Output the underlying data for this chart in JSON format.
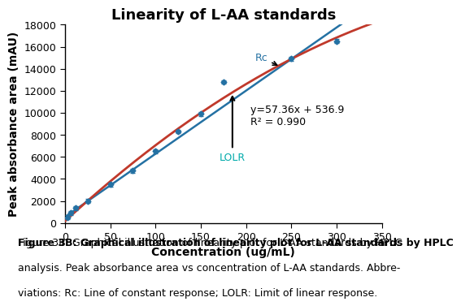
{
  "title": "Linearity of L-AA standards",
  "xlabel": "Concentration (ug/mL)",
  "ylabel": "Peak absorbance area (mAU)",
  "xlim": [
    0,
    350
  ],
  "ylim": [
    0,
    18000
  ],
  "xticks": [
    0,
    50,
    100,
    150,
    200,
    250,
    300,
    350
  ],
  "yticks": [
    0,
    2000,
    4000,
    6000,
    8000,
    10000,
    12000,
    14000,
    16000,
    18000
  ],
  "data_points_x": [
    3,
    6,
    12,
    25,
    50,
    75,
    100,
    125,
    150,
    175,
    250,
    300
  ],
  "data_points_y": [
    500,
    900,
    1350,
    2000,
    3500,
    4750,
    6500,
    8300,
    9900,
    12800,
    14900,
    16500
  ],
  "linear_slope": 57.36,
  "linear_intercept": 536.9,
  "r_squared": 0.99,
  "curve_color": "#c0392b",
  "line_color": "#2471a3",
  "point_color": "#2471a3",
  "equation_text": "y=57.36x + 536.9",
  "r2_text": "R² = 0.990",
  "annotation_Rc": "Rc",
  "annotation_LOLR": "LOLR",
  "caption_line1": "Figure 3B: Graphical illustration of linearity plot for L-AA standards by HPLC",
  "caption_line2": "analysis. Peak absorbance area vs concentration of L-AA standards. Abbre-",
  "caption_line3": "viations: Rc: Line of constant response; LOLR: Limit of linear response.",
  "caption_fontsize": 9,
  "title_fontsize": 13,
  "axis_label_fontsize": 10,
  "tick_fontsize": 9
}
